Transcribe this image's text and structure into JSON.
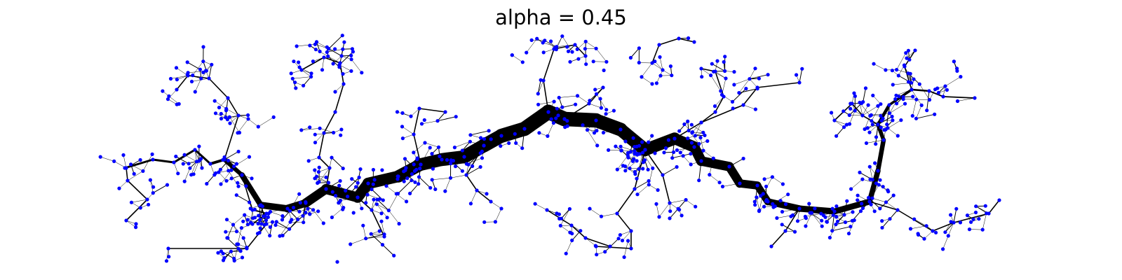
{
  "title": "alpha = 0.45",
  "colors": {
    "node": "#0000ff",
    "edge": "#000000",
    "background": "#ffffff"
  },
  "legend": null,
  "axes": "hidden"
}
